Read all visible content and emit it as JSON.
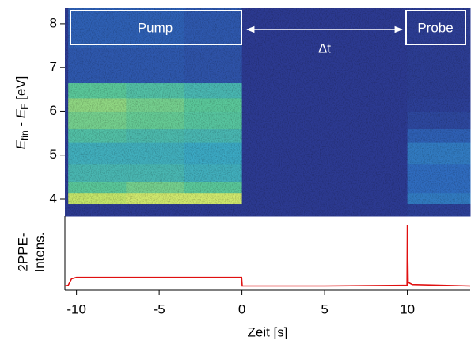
{
  "chart_data": [
    {
      "type": "heatmap",
      "ylabel": [
        "E",
        "fin",
        " - ",
        "E",
        "F",
        " [eV]"
      ],
      "annotations": [
        "Pump",
        "Δt",
        "Probe"
      ],
      "xlim": [
        -10.7,
        13.8
      ],
      "ylim": [
        3.62,
        8.36
      ],
      "yticks": [
        4,
        5,
        6,
        7,
        8
      ],
      "colormap": [
        "#2c3a92",
        "#2f6cc0",
        "#38a6c9",
        "#5ac89a",
        "#c6e66a",
        "#f2f27a"
      ],
      "x_edges": [
        -10.7,
        -10.5,
        -7,
        -3.5,
        0,
        10,
        13.8
      ],
      "y_edges": [
        3.62,
        3.9,
        4.15,
        4.4,
        4.8,
        5.3,
        5.6,
        6.0,
        6.3,
        6.65,
        7.45,
        8.36
      ],
      "z": [
        [
          0,
          0,
          0,
          0,
          0,
          0.02
        ],
        [
          0,
          0.8,
          0.85,
          0.85,
          0,
          0.25
        ],
        [
          0,
          0.6,
          0.65,
          0.6,
          0,
          0.2
        ],
        [
          0,
          0.5,
          0.5,
          0.45,
          0,
          0.2
        ],
        [
          0,
          0.45,
          0.45,
          0.42,
          0,
          0.25
        ],
        [
          0,
          0.55,
          0.52,
          0.5,
          0,
          0.15
        ],
        [
          0,
          0.65,
          0.62,
          0.58,
          0,
          0.05
        ],
        [
          0,
          0.7,
          0.65,
          0.6,
          0,
          0.02
        ],
        [
          0,
          0.6,
          0.55,
          0.5,
          0,
          0.01
        ],
        [
          0,
          0.12,
          0.12,
          0.1,
          0,
          0.01
        ],
        [
          0,
          0.15,
          0.15,
          0.12,
          0,
          0.01
        ]
      ]
    },
    {
      "type": "line",
      "ylabel": [
        "2PPE-",
        "Intens."
      ],
      "xlabel": "Zeit [s]",
      "xlim": [
        -10.7,
        13.8
      ],
      "xticks": [
        -10,
        -5,
        0,
        5,
        10
      ],
      "ylim": [
        0,
        1
      ],
      "color": "#e01010",
      "x": [
        -10.7,
        -10.5,
        -10.3,
        -10,
        -5,
        -0.02,
        0.02,
        5,
        9.98,
        10,
        10.05,
        10.3,
        13.8
      ],
      "values": [
        0.05,
        0.06,
        0.15,
        0.17,
        0.17,
        0.17,
        0.05,
        0.05,
        0.06,
        0.9,
        0.1,
        0.07,
        0.05
      ]
    }
  ]
}
